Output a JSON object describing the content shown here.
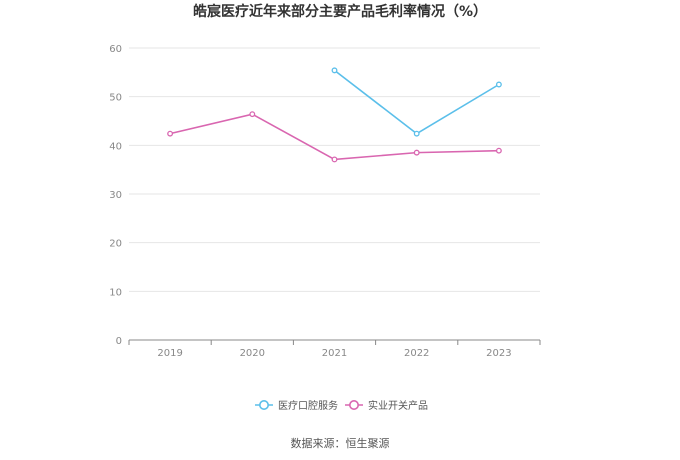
{
  "chart_data": {
    "type": "line",
    "title": "皓宸医疗近年来部分主要产品毛利率情况（%）",
    "categories": [
      "2019",
      "2020",
      "2021",
      "2022",
      "2023"
    ],
    "ylim": [
      0,
      60
    ],
    "yticks": [
      0,
      10,
      20,
      30,
      40,
      50,
      60
    ],
    "grid": true,
    "legend_position": "bottom-center",
    "series": [
      {
        "name": "医疗口腔服务",
        "color": "#5bbfea",
        "values": [
          null,
          null,
          55.4,
          42.4,
          52.5
        ]
      },
      {
        "name": "实业开关产品",
        "color": "#d966b0",
        "values": [
          42.4,
          46.4,
          37.1,
          38.5,
          38.9
        ]
      }
    ]
  },
  "source": "数据来源：恒生聚源"
}
